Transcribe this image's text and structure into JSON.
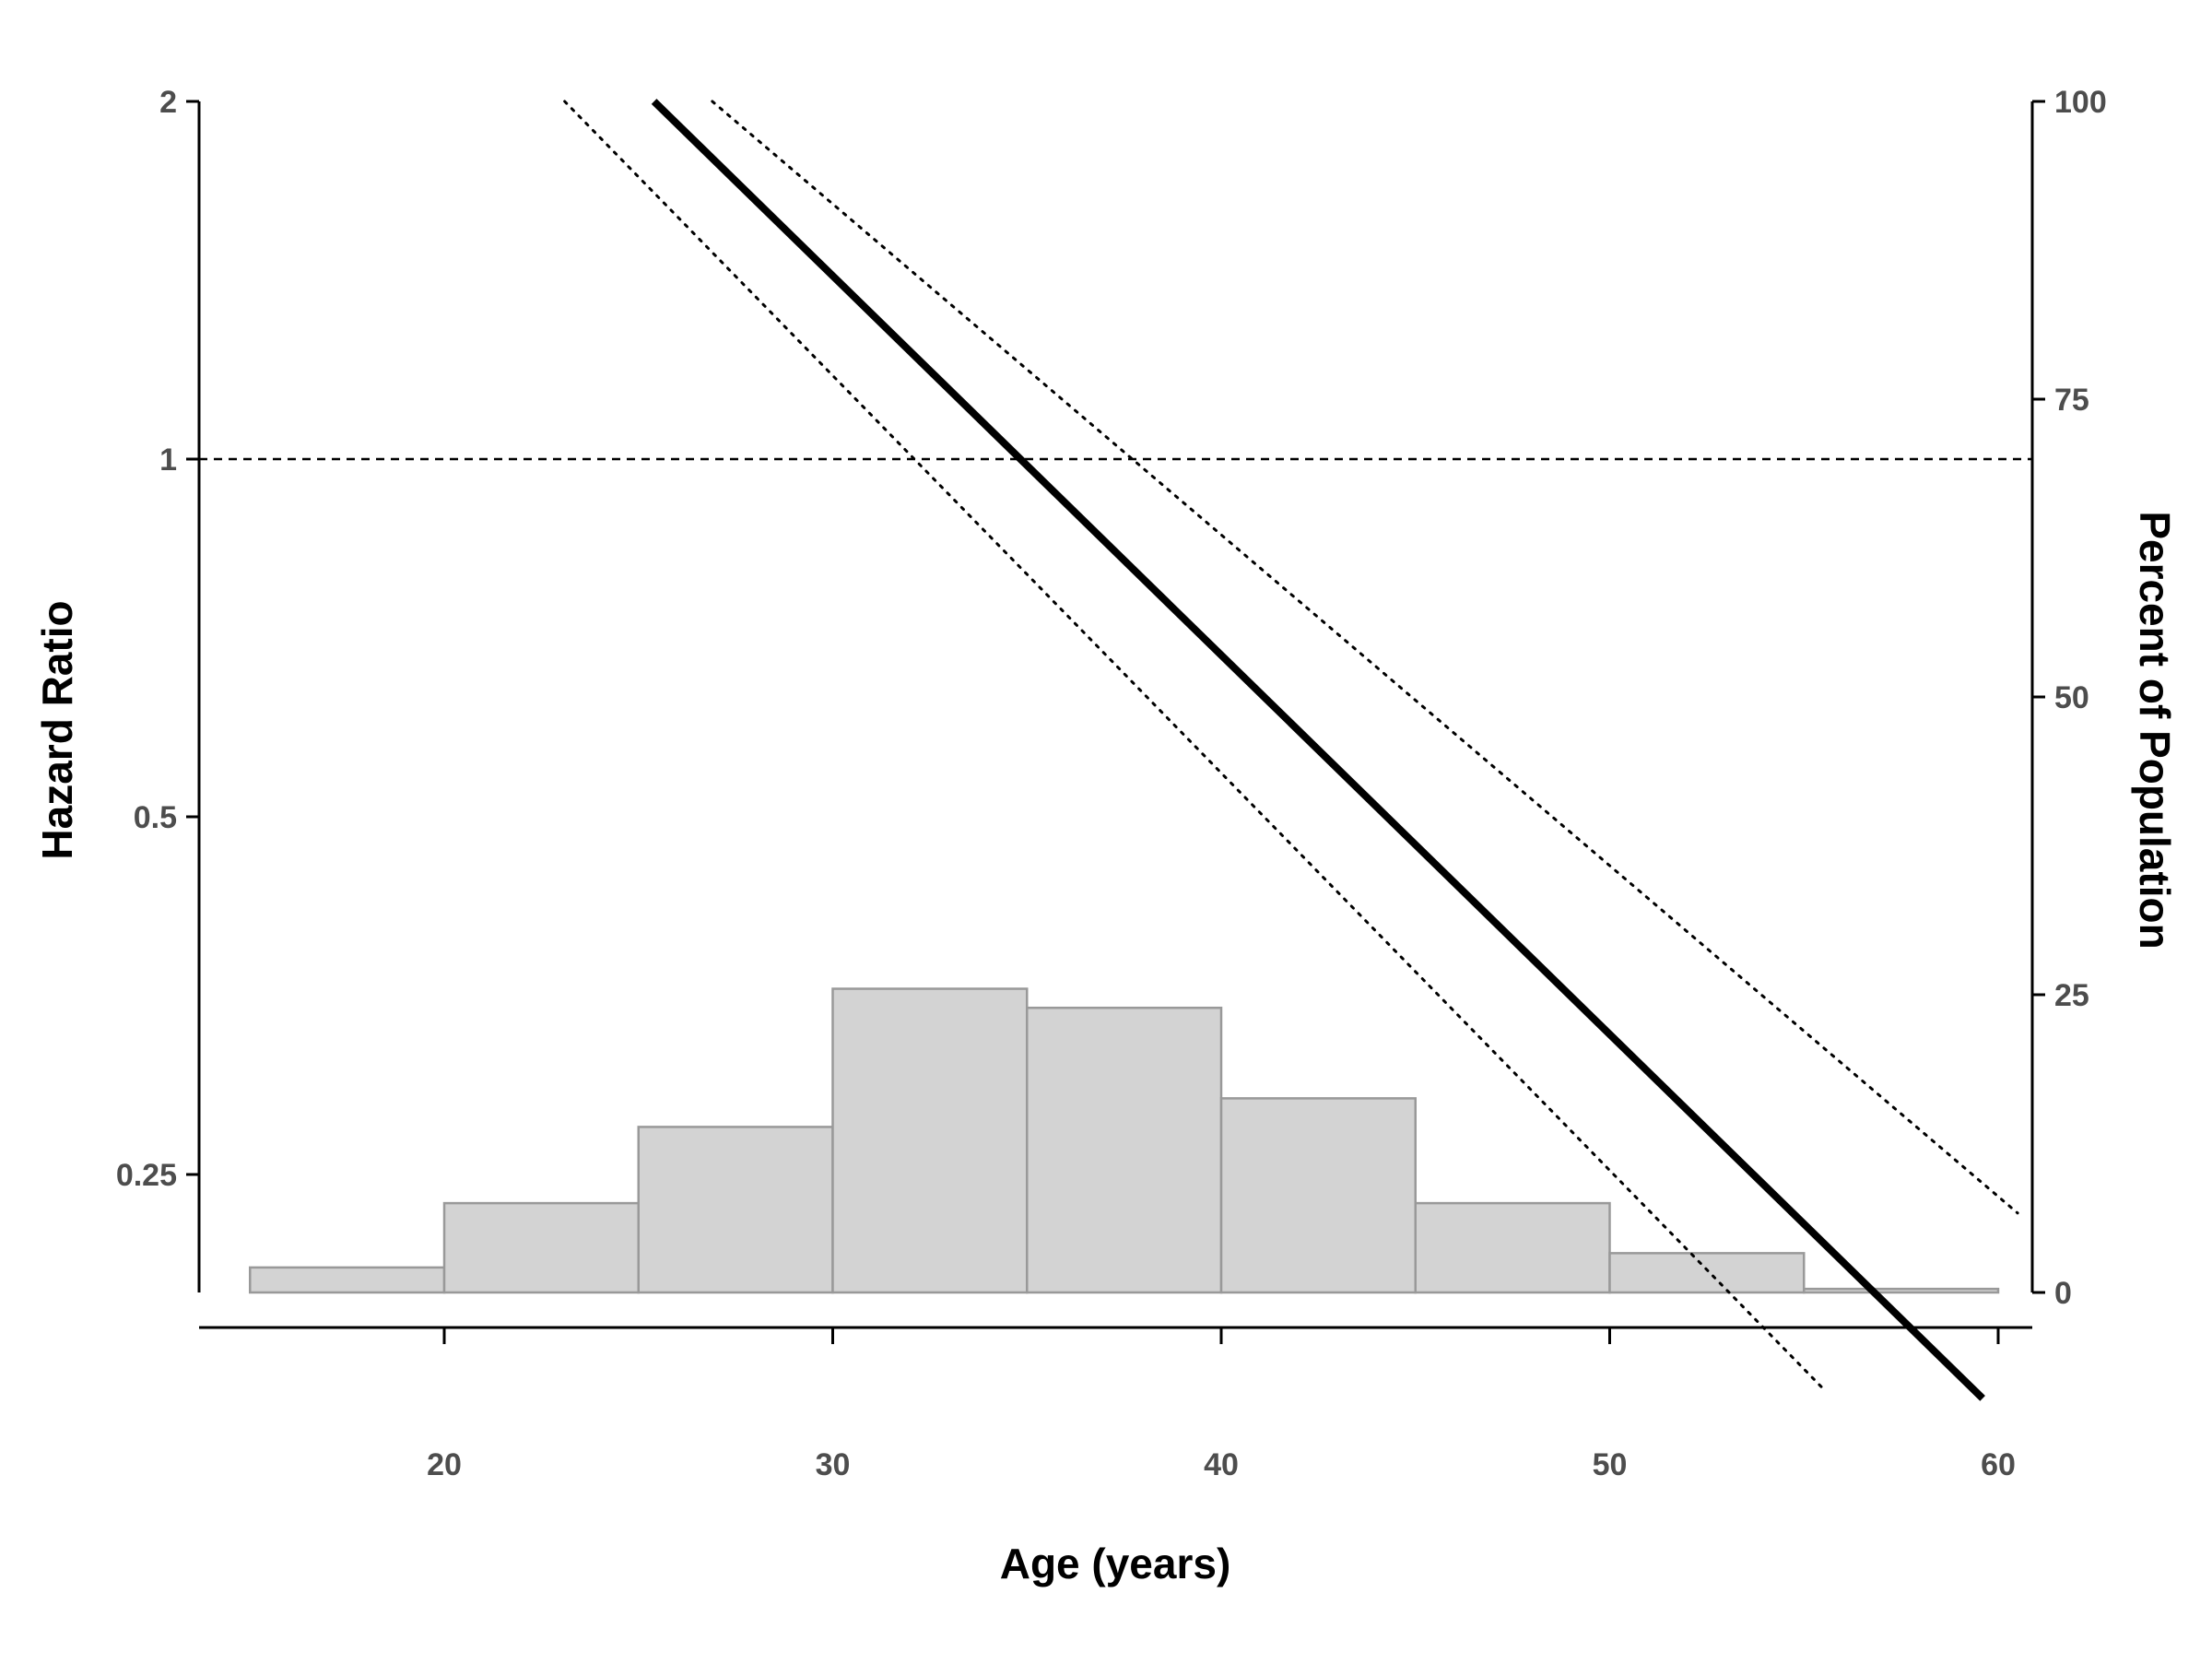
{
  "chart_data": {
    "type": "line",
    "title": "",
    "xlabel": "Age (years)",
    "ylabel": "Hazard Ratio",
    "y2label": "Percent of Population",
    "x_ticks": [
      20,
      30,
      40,
      50,
      60
    ],
    "y_ticks": [
      0.25,
      0.5,
      1,
      2
    ],
    "y_tick_labels": [
      "0.25",
      "0.5",
      "1",
      "2"
    ],
    "y_scale": "log2",
    "y2_ticks": [
      0,
      25,
      50,
      75,
      100
    ],
    "xlim": [
      13.7,
      60.5
    ],
    "ylim": [
      0.1715,
      2
    ],
    "y2lim": [
      0,
      100
    ],
    "reference_line": {
      "y": 1,
      "style": "dashed"
    },
    "series": [
      {
        "role": "estimate",
        "style": "solid",
        "x": [
          25.4,
          59.6
        ],
        "y": [
          2.0,
          0.162
        ]
      },
      {
        "role": "upper-bound",
        "style": "dotted",
        "x": [
          26.9,
          60.5
        ],
        "y": [
          2.0,
          0.232
        ]
      },
      {
        "role": "lower-bound",
        "style": "dotted",
        "x": [
          23.1,
          55.5
        ],
        "y": [
          2.0,
          0.165
        ]
      }
    ],
    "histogram": {
      "axis": "y2",
      "bins": [
        [
          15,
          20
        ],
        [
          20,
          25
        ],
        [
          25,
          30
        ],
        [
          30,
          35
        ],
        [
          35,
          40
        ],
        [
          40,
          45
        ],
        [
          45,
          50
        ],
        [
          50,
          55
        ],
        [
          55,
          60
        ]
      ],
      "values": [
        2.1,
        7.5,
        13.9,
        25.5,
        23.9,
        16.3,
        7.5,
        3.3,
        0.3
      ]
    },
    "colors": {
      "line": "#000000",
      "histogram_fill": "#d3d3d3",
      "histogram_stroke": "#999999",
      "tick_label": "#4d4d4d"
    }
  }
}
